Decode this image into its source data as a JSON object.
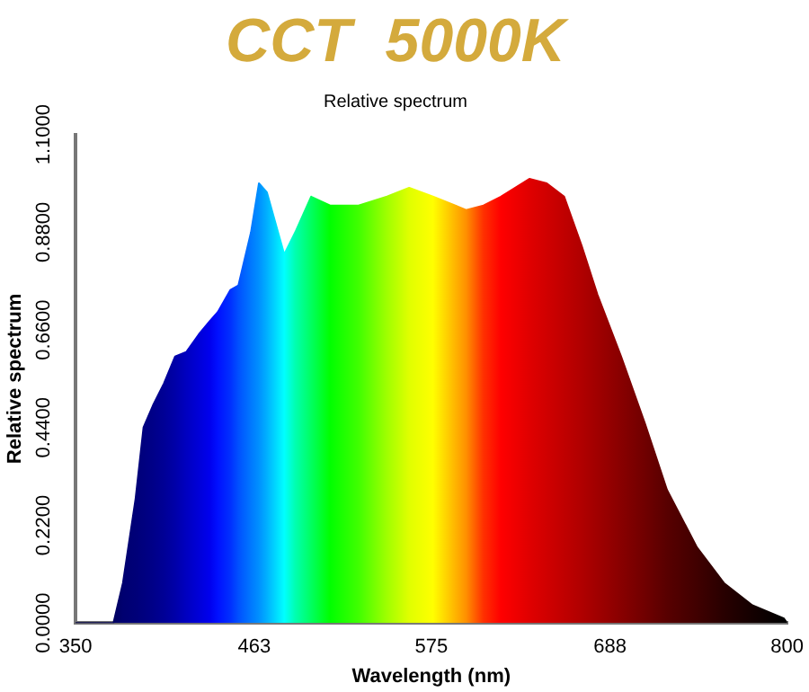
{
  "chart_data": {
    "type": "area",
    "title": "CCT  5000K",
    "subtitle": "Relative spectrum",
    "xlabel": "Wavelength (nm)",
    "ylabel": "Relative spectrum",
    "x": [
      350,
      370,
      374,
      380,
      388,
      393,
      399,
      406,
      413,
      420,
      428,
      435,
      440,
      448,
      453,
      461,
      466,
      471,
      482,
      489,
      499,
      511,
      529,
      547,
      561,
      576,
      597,
      608,
      619,
      637,
      648,
      659,
      670,
      680,
      695,
      710,
      724,
      743,
      760,
      778,
      798,
      800
    ],
    "values": [
      0,
      0,
      0,
      0.09,
      0.28,
      0.44,
      0.49,
      0.54,
      0.6,
      0.61,
      0.65,
      0.68,
      0.7,
      0.75,
      0.76,
      0.88,
      0.99,
      0.97,
      0.83,
      0.88,
      0.96,
      0.94,
      0.94,
      0.96,
      0.98,
      0.96,
      0.93,
      0.94,
      0.96,
      1.0,
      0.99,
      0.96,
      0.85,
      0.74,
      0.6,
      0.45,
      0.3,
      0.17,
      0.09,
      0.04,
      0.01,
      0
    ],
    "colors": [
      "#000040",
      "#000050",
      "#000060",
      "#000070",
      "#000078",
      "#00007f",
      "#000088",
      "#000096",
      "#0000a8",
      "#0000c0",
      "#0000d8",
      "#0000ee",
      "#0010ff",
      "#0030ff",
      "#0050ff",
      "#0078ff",
      "#0090ff",
      "#00b0ff",
      "#00ffff",
      "#00ffb0",
      "#00ff60",
      "#00ff00",
      "#40ff00",
      "#a0ff00",
      "#e0ff00",
      "#ffff00",
      "#ff9000",
      "#ff3000",
      "#ff0000",
      "#e00000",
      "#d00000",
      "#c00000",
      "#b00000",
      "#a00000",
      "#880000",
      "#700000",
      "#580000",
      "#400000",
      "#280000",
      "#140000",
      "#000000",
      "#000000"
    ],
    "xlim": [
      350,
      800
    ],
    "xticks": [
      350,
      463,
      575,
      688,
      800
    ],
    "ylim": [
      0,
      1.1
    ],
    "yticks": [
      {
        "value": 0,
        "label": "0.0000"
      },
      {
        "value": 0.22,
        "label": "0.2200"
      },
      {
        "value": 0.44,
        "label": "0.4400"
      },
      {
        "value": 0.66,
        "label": "0.6600"
      },
      {
        "value": 0.88,
        "label": "0.8800"
      },
      {
        "value": 1.1,
        "label": "1.1000"
      }
    ],
    "grid": false,
    "legend": false
  }
}
